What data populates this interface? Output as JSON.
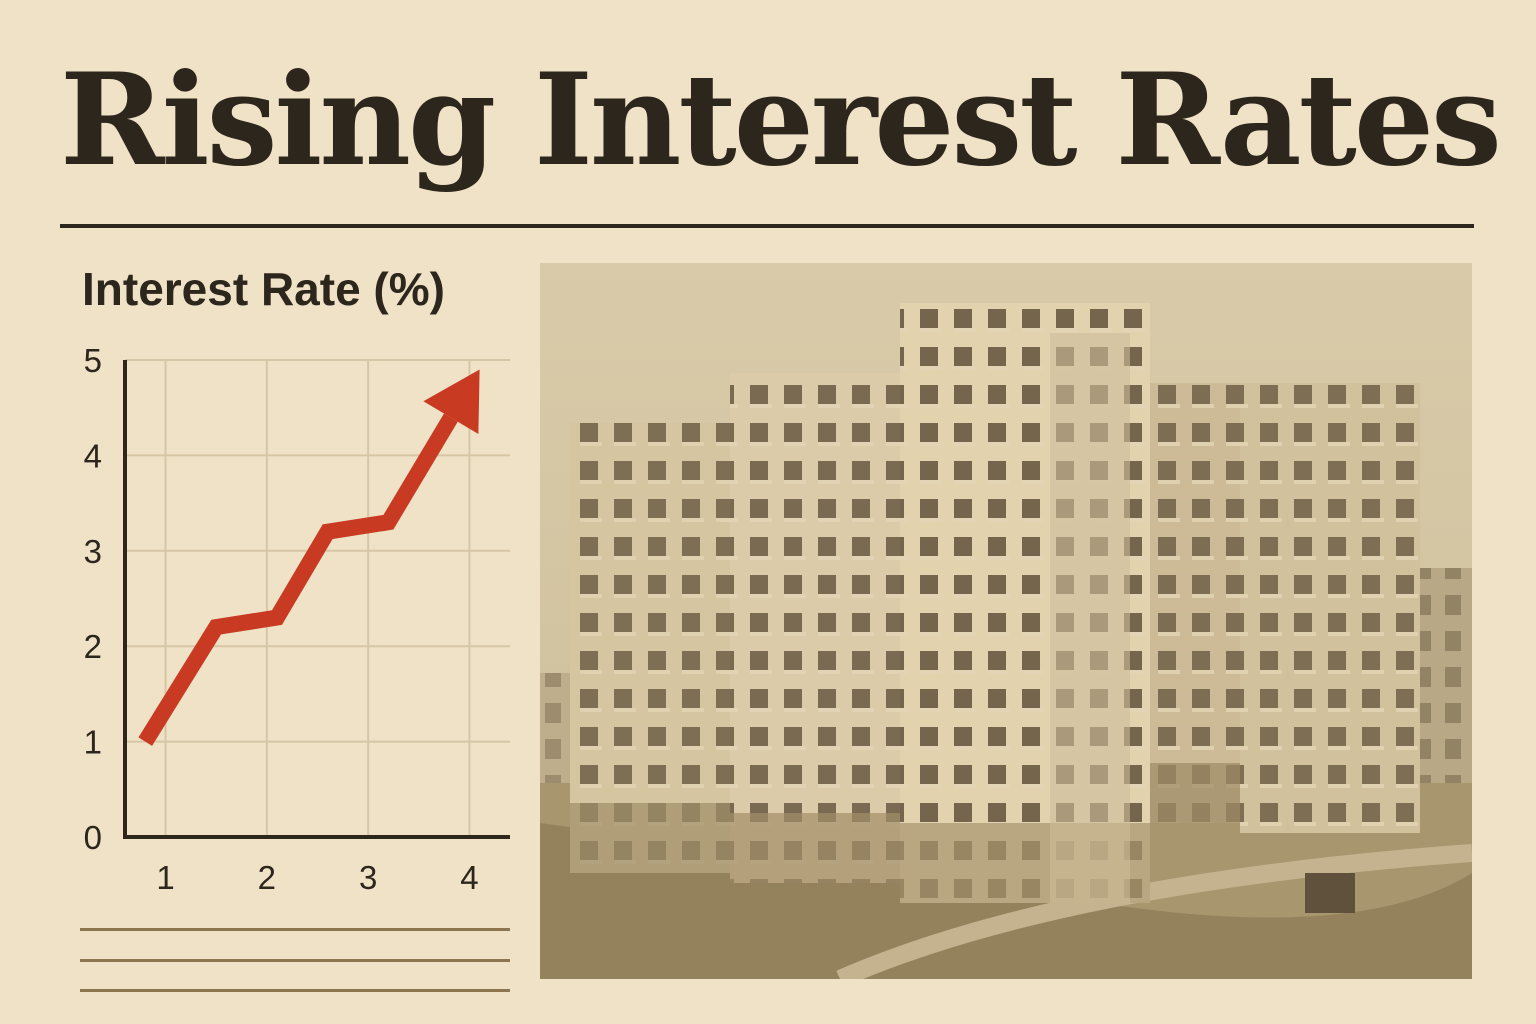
{
  "headline": "Rising Interest Rates",
  "chart_data": {
    "type": "line",
    "title": "Interest Rate (%)",
    "x_ticks": [
      "1",
      "2",
      "3",
      "4"
    ],
    "y_ticks": [
      "0",
      "1",
      "2",
      "3",
      "4",
      "5"
    ],
    "xlim": [
      0.6,
      4.4
    ],
    "ylim": [
      0,
      5
    ],
    "grid": true,
    "series": [
      {
        "x": [
          0.8,
          1.5,
          2.1,
          2.6,
          3.2,
          4.1
        ],
        "values": [
          1.0,
          2.2,
          2.3,
          3.2,
          3.3,
          4.9
        ]
      }
    ],
    "colors": {
      "line": "#c93a22",
      "axis": "#2d261d",
      "grid": "#d6c6a6"
    }
  },
  "photo": {
    "icon": "apartment-buildings-photo"
  }
}
